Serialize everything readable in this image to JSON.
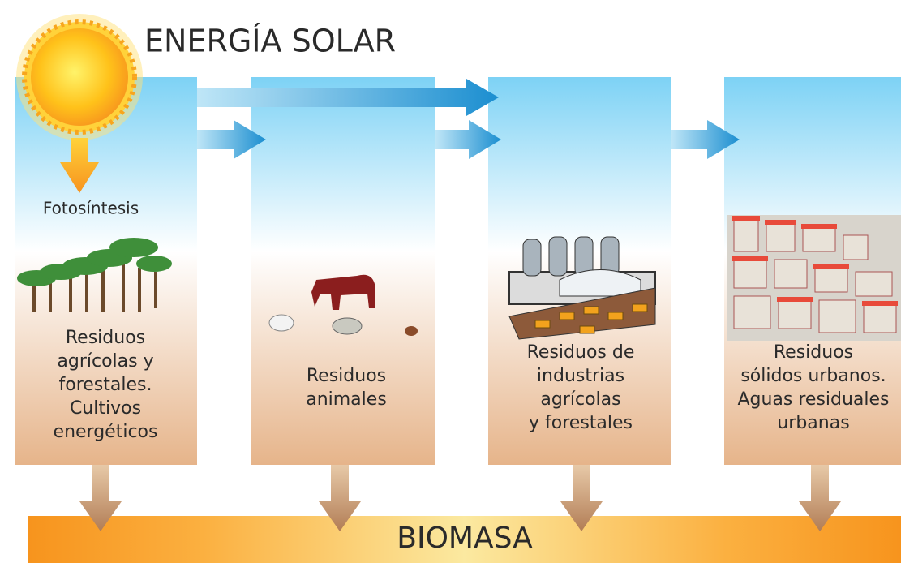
{
  "title": "ENERGÍA SOLAR",
  "process": "Fotosíntesis",
  "sources": [
    {
      "lines": [
        "Residuos",
        "agrícolas y",
        "forestales.",
        "Cultivos",
        "energéticos"
      ]
    },
    {
      "lines": [
        "Residuos",
        "animales"
      ]
    },
    {
      "lines": [
        "Residuos de",
        "industrias",
        "agrícolas",
        "y forestales"
      ]
    },
    {
      "lines": [
        "Residuos",
        "sólidos urbanos.",
        "Aguas residuales",
        "urbanas"
      ]
    }
  ],
  "result": "BIOMASA"
}
